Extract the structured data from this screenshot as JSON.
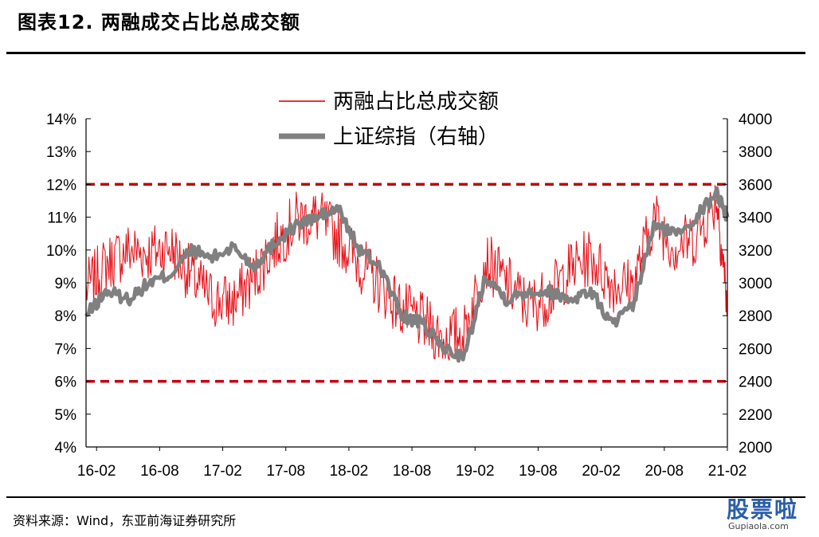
{
  "header": {
    "title": "图表12.  两融成交占比总成交额"
  },
  "footer": {
    "source": "资料来源：Wind，东亚前海证券研究所"
  },
  "watermark": {
    "text": "股票啦",
    "url": "Gupiaola.com"
  },
  "colors": {
    "ratio": "#e8141b",
    "index": "#808080",
    "threshold": "#c0000f",
    "axis": "#000000"
  },
  "chart_data": {
    "type": "line",
    "legend": [
      "两融占比总成交额",
      "上证综指（右轴）"
    ],
    "legend_position": "top-center",
    "grid": false,
    "x_range": [
      "2016-01",
      "2021-02"
    ],
    "x_ticks": [
      "16-02",
      "16-08",
      "17-02",
      "17-08",
      "18-02",
      "18-08",
      "19-02",
      "19-08",
      "20-02",
      "20-08",
      "21-02"
    ],
    "y_left": {
      "min": 4,
      "max": 14,
      "ticks": [
        "4%",
        "5%",
        "6%",
        "7%",
        "8%",
        "9%",
        "10%",
        "11%",
        "12%",
        "13%",
        "14%"
      ]
    },
    "y_right": {
      "min": 2000,
      "max": 4000,
      "ticks": [
        "2000",
        "2200",
        "2400",
        "2600",
        "2800",
        "3000",
        "3200",
        "3400",
        "3600",
        "3800",
        "4000"
      ]
    },
    "reference_lines": [
      {
        "axis": "left",
        "value": 12,
        "style": "dashed"
      },
      {
        "axis": "left",
        "value": 6,
        "style": "dashed"
      }
    ],
    "series": [
      {
        "name": "两融占比总成交额",
        "axis": "left",
        "x": [
          "2016-01",
          "2016-03",
          "2016-05",
          "2016-07",
          "2016-09",
          "2016-11",
          "2017-01",
          "2017-03",
          "2017-05",
          "2017-07",
          "2017-09",
          "2017-11",
          "2018-01",
          "2018-03",
          "2018-05",
          "2018-07",
          "2018-09",
          "2018-11",
          "2019-01",
          "2019-03",
          "2019-05",
          "2019-07",
          "2019-09",
          "2019-11",
          "2020-01",
          "2020-03",
          "2020-05",
          "2020-07",
          "2020-09",
          "2020-11",
          "2021-01",
          "2021-02"
        ],
        "y": [
          8.8,
          9.6,
          10.0,
          9.9,
          10.1,
          9.2,
          8.5,
          8.4,
          9.2,
          10.2,
          10.9,
          11.0,
          10.4,
          9.6,
          8.9,
          8.2,
          7.8,
          7.3,
          7.5,
          9.7,
          9.0,
          8.3,
          8.6,
          9.4,
          9.8,
          9.0,
          8.9,
          11.0,
          10.1,
          10.4,
          11.6,
          8.3
        ]
      },
      {
        "name": "上证综指（右轴）",
        "axis": "right",
        "x": [
          "2016-01",
          "2016-03",
          "2016-05",
          "2016-07",
          "2016-09",
          "2016-11",
          "2017-01",
          "2017-03",
          "2017-05",
          "2017-07",
          "2017-09",
          "2017-11",
          "2018-01",
          "2018-03",
          "2018-05",
          "2018-07",
          "2018-09",
          "2018-11",
          "2019-01",
          "2019-03",
          "2019-05",
          "2019-07",
          "2019-09",
          "2019-11",
          "2020-01",
          "2020-03",
          "2020-05",
          "2020-07",
          "2020-09",
          "2020-11",
          "2021-01",
          "2021-02"
        ],
        "y": [
          2800,
          2950,
          2900,
          3000,
          3050,
          3200,
          3150,
          3220,
          3100,
          3250,
          3350,
          3400,
          3450,
          3200,
          3100,
          2800,
          2750,
          2600,
          2550,
          3050,
          2900,
          2950,
          2950,
          2900,
          2950,
          2750,
          2850,
          3350,
          3300,
          3400,
          3550,
          3400
        ]
      }
    ]
  }
}
